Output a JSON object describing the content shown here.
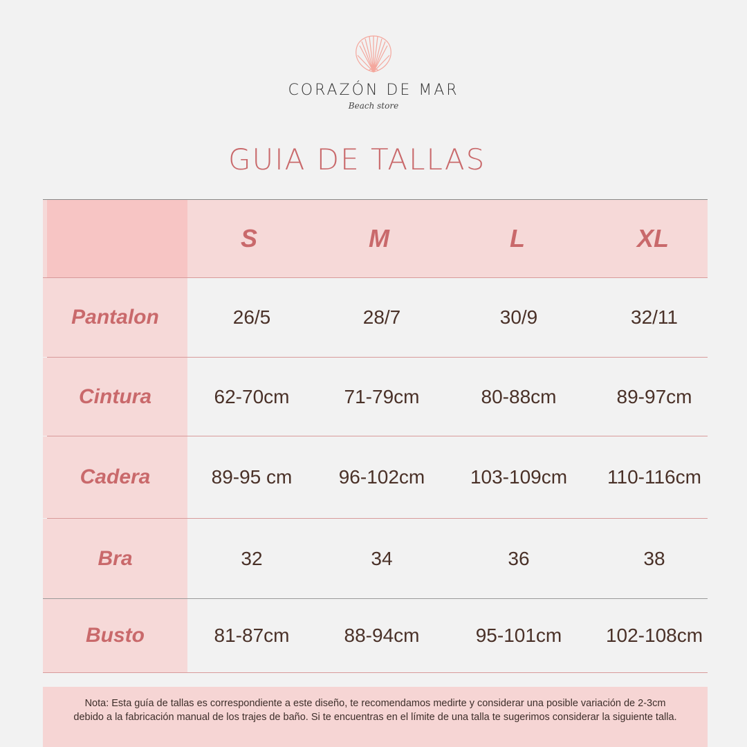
{
  "brand": {
    "name": "CORAZÓN DE MAR",
    "tagline": "Beach store",
    "logo_icon": "seashell-icon",
    "logo_color": "#f4a79d"
  },
  "title": "GUIA DE TALLAS",
  "colors": {
    "accent": "#c9696b",
    "header_bg": "#f6d9d8",
    "text": "#4a3128"
  },
  "table": {
    "sizes": [
      "S",
      "M",
      "L",
      "XL"
    ],
    "rows": [
      {
        "label": "Pantalon",
        "values": [
          "26/5",
          "28/7",
          "30/9",
          "32/11"
        ]
      },
      {
        "label": "Cintura",
        "values": [
          "62-70cm",
          "71-79cm",
          "80-88cm",
          "89-97cm"
        ]
      },
      {
        "label": "Cadera",
        "values": [
          "89-95 cm",
          "96-102cm",
          "103-109cm",
          "110-116cm"
        ]
      },
      {
        "label": "Bra",
        "values": [
          "32",
          "34",
          "36",
          "38"
        ]
      },
      {
        "label": "Busto",
        "values": [
          "81-87cm",
          "88-94cm",
          "95-101cm",
          "102-108cm"
        ]
      }
    ]
  },
  "note": "Nota: Esta guía de tallas es correspondiente a este diseño, te recomendamos medirte y considerar una posible variación de 2-3cm debido a la fabricación manual de los trajes de baño. Si te encuentras en el límite de una talla te sugerimos considerar la siguiente talla."
}
